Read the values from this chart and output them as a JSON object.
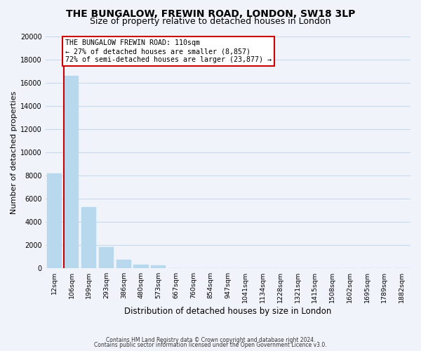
{
  "title": "THE BUNGALOW, FREWIN ROAD, LONDON, SW18 3LP",
  "subtitle": "Size of property relative to detached houses in London",
  "xlabel": "Distribution of detached houses by size in London",
  "ylabel": "Number of detached properties",
  "bar_labels": [
    "12sqm",
    "106sqm",
    "199sqm",
    "293sqm",
    "386sqm",
    "480sqm",
    "573sqm",
    "667sqm",
    "760sqm",
    "854sqm",
    "947sqm",
    "1041sqm",
    "1134sqm",
    "1228sqm",
    "1321sqm",
    "1415sqm",
    "1508sqm",
    "1602sqm",
    "1695sqm",
    "1789sqm",
    "1882sqm"
  ],
  "bar_values": [
    8200,
    16600,
    5300,
    1850,
    750,
    300,
    250,
    0,
    0,
    0,
    0,
    0,
    0,
    0,
    0,
    0,
    0,
    0,
    0,
    0,
    0
  ],
  "bar_color": "#b8d8ed",
  "property_line_color": "#cc0000",
  "ylim": [
    0,
    20000
  ],
  "yticks": [
    0,
    2000,
    4000,
    6000,
    8000,
    10000,
    12000,
    14000,
    16000,
    18000,
    20000
  ],
  "annotation_title": "THE BUNGALOW FREWIN ROAD: 110sqm",
  "annotation_line1": "← 27% of detached houses are smaller (8,857)",
  "annotation_line2": "72% of semi-detached houses are larger (23,877) →",
  "footer_line1": "Contains HM Land Registry data © Crown copyright and database right 2024.",
  "footer_line2": "Contains public sector information licensed under the Open Government Licence v3.0.",
  "bg_color": "#f0f4fa",
  "grid_color": "#c8d8ee",
  "title_fontsize": 10,
  "subtitle_fontsize": 9,
  "annotation_box_color": "#ffffff",
  "annotation_box_edge": "#cc0000"
}
